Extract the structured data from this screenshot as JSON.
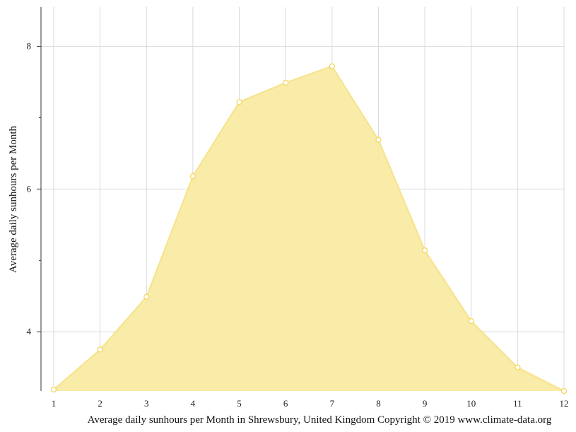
{
  "chart_data": {
    "type": "area",
    "x": [
      1,
      2,
      3,
      4,
      5,
      6,
      7,
      8,
      9,
      10,
      11,
      12
    ],
    "series": [
      {
        "values": [
          3.19,
          3.75,
          4.49,
          6.18,
          7.22,
          7.49,
          7.72,
          6.69,
          5.14,
          4.15,
          3.5,
          3.17
        ]
      }
    ],
    "ylabel": "Average daily sunhours per Month",
    "xlabel": "Average daily sunhours per Month in Shrewsbury, United Kingdom Copyright © 2019 www.climate-data.org",
    "y_ticks": [
      "4",
      "6",
      "8"
    ],
    "x_ticks": [
      "1",
      "2",
      "3",
      "4",
      "5",
      "6",
      "7",
      "8",
      "9",
      "10",
      "11",
      "12"
    ],
    "ylim": [
      3.17,
      8.55
    ],
    "xlim": [
      1,
      12
    ],
    "grid": true,
    "colors": {
      "fill": "#f9eaa3",
      "line": "#f6e38a",
      "marker": "#f2d75b"
    }
  }
}
